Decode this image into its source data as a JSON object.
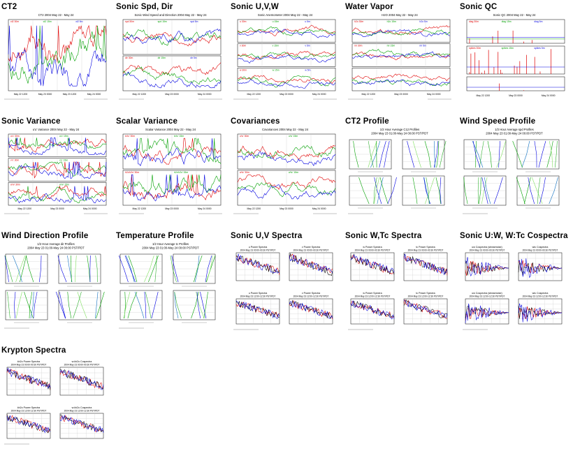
{
  "page": {
    "thumbnails": [
      {
        "key": "ct2",
        "title": "CT2",
        "heads": [
          "CT2 2004 May 22 - May 24"
        ],
        "legends": [
          [
            "ct2 30m",
            "ct2 15m",
            "ct2 5m"
          ]
        ],
        "axis_labels": [
          "May 22 1200",
          "May 23 0000",
          "May 23 1200",
          "May 24 0000"
        ]
      },
      {
        "key": "sonic-spd-dir",
        "title": "Sonic Spd, Dir",
        "heads": [
          "Sonic Wind Speed and Direction 2004 May 22 - May 24"
        ],
        "legends": [
          [
            "spd 30m",
            "spd 15m",
            "spd 5m"
          ],
          [
            "dir 30m",
            "dir 15m",
            "dir 5m"
          ]
        ],
        "axis_labels": [
          "May 22 1200",
          "May 23 0000",
          "May 24 0000"
        ]
      },
      {
        "key": "sonic-uvw",
        "title": "Sonic U,V,W",
        "heads": [
          "Sonic Anemometer 2004 May 22 - May 24"
        ],
        "legends": [
          [
            "u 30m",
            "u 15m",
            "u 5m"
          ],
          [
            "v 30m",
            "v 15m",
            "v 5m"
          ],
          [
            "w 30m",
            "w 15m",
            "w 5m"
          ]
        ],
        "axis_labels": [
          "May 22 1200",
          "May 23 0000",
          "May 24 0000"
        ]
      },
      {
        "key": "water-vapor",
        "title": "Water Vapor",
        "heads": [
          "H2O 2004 May 22 - May 24"
        ],
        "legends": [
          [
            "h2o 30m",
            "h2o 15m",
            "h2o 5m"
          ],
          [
            "mr 30m",
            "mr 15m",
            "mr 5m"
          ]
        ],
        "axis_labels": [
          "May 22 1200",
          "May 23 0000",
          "May 24 0000"
        ]
      },
      {
        "key": "sonic-qc",
        "title": "Sonic QC",
        "heads": [
          "Sonic QC 2004 May 22 - May 24"
        ],
        "legends": [
          [
            "diag 30m",
            "diag 15m",
            "diag 5m"
          ],
          [
            "spikes 30m",
            "spikes 15m",
            "spikes 5m"
          ]
        ],
        "axis_labels": [
          "May 22 1200",
          "May 23 0000",
          "May 24 0000"
        ]
      },
      {
        "key": "sonic-variance",
        "title": "Sonic Variance",
        "heads": [
          "u'u' Variance 2004 May 22 - May 24"
        ],
        "legends": [
          [
            "u'u' 30m",
            "u'u' 15m"
          ],
          [
            "v'v' 30m",
            "v'v' 15m"
          ],
          [
            "w'w' 30m",
            "w'w' 15m"
          ]
        ],
        "axis_labels": [
          "May 22 1200",
          "May 23 0000",
          "May 24 0000"
        ]
      },
      {
        "key": "scalar-variance",
        "title": "Scalar Variance",
        "heads": [
          "Scalar Variance 2004 May 22 - May 24"
        ],
        "legends": [
          [
            "tc'tc' 30m",
            "tc'tc' 15m"
          ],
          [
            "h2o'h2o' 30m",
            "h2o'h2o' 15m"
          ]
        ],
        "axis_labels": [
          "May 22 1200",
          "May 23 0000",
          "May 24 0000"
        ]
      },
      {
        "key": "covariances",
        "title": "Covariances",
        "heads": [
          "Covariances 2004 May 22 - May 24"
        ],
        "legends": [
          [
            "u'w' 30m",
            "u'w' 15m"
          ],
          [
            "w'tc' 30m",
            "w'tc' 15m"
          ]
        ],
        "axis_labels": [
          "May 22 1200",
          "May 23 0000",
          "May 24 0000"
        ]
      },
      {
        "key": "ct2-profile",
        "title": "CT2 Profile",
        "heads": [
          "1/2 Hour Average C12 Profiles",
          "2004 May 23 01:00-May 24 00:00 PST/PDT"
        ],
        "legends": [],
        "axis_labels": []
      },
      {
        "key": "wind-speed-profile",
        "title": "Wind Speed Profile",
        "heads": [
          "1/2 Hour Average spd Profiles",
          "2004 May 23 01:00-May 24 00:00 PST/PDT"
        ],
        "legends": [],
        "axis_labels": []
      },
      {
        "key": "wind-direction-profile",
        "title": "Wind Direction Profile",
        "heads": [
          "1/2 Hour Average dir Profiles",
          "2004 May 23 01:00-May 24 00:00 PST/PDT"
        ],
        "legends": [],
        "axis_labels": []
      },
      {
        "key": "temperature-profile",
        "title": "Temperature Profile",
        "heads": [
          "1/2 Hour Average tc Profiles",
          "2004 May 23 01:00-May 24 00:00 PST/PDT"
        ],
        "legends": [],
        "axis_labels": []
      },
      {
        "key": "sonic-uv-spectra",
        "title": "Sonic U,V Spectra",
        "heads": [
          "u Power Spectra",
          "v Power Spectra",
          "2004 May 23 00:00-00:30 PST/PDT",
          "2004 May 23 12:00-12:30 PST/PDT"
        ],
        "legends": [],
        "axis_labels": []
      },
      {
        "key": "sonic-wtc-spectra",
        "title": "Sonic W,Tc Spectra",
        "heads": [
          "w Power Spectra",
          "tc Power Spectra",
          "2004 May 23 00:00-00:30 PST/PDT",
          "2004 May 23 12:00-12:30 PST/PDT"
        ],
        "legends": [],
        "axis_labels": []
      },
      {
        "key": "sonic-uw-wtc-cospectra",
        "title": "Sonic U:W, W:Tc Cospectra",
        "heads": [
          "uw Cospectra (streamwise)",
          "wtc Cospectra",
          "2004 May 23 00:00-00:30 PST/PDT",
          "2004 May 23 12:00-12:30 PST/PDT"
        ],
        "legends": [],
        "axis_labels": []
      },
      {
        "key": "krypton-spectra",
        "title": "Krypton Spectra",
        "heads": [
          "kh2o Power Spectra",
          "w:kh2o Cospectra",
          "2004 May 23 00:00-00:30 PST/PDT",
          "2004 May 23 12:00-12:30 PST/PDT"
        ],
        "legends": [],
        "axis_labels": []
      }
    ]
  },
  "colors": {
    "series": [
      "#e00000",
      "#00a000",
      "#0000e0",
      "#d0a000",
      "#80e060"
    ],
    "axis": "#000000",
    "grid": "#c8c8c8"
  }
}
